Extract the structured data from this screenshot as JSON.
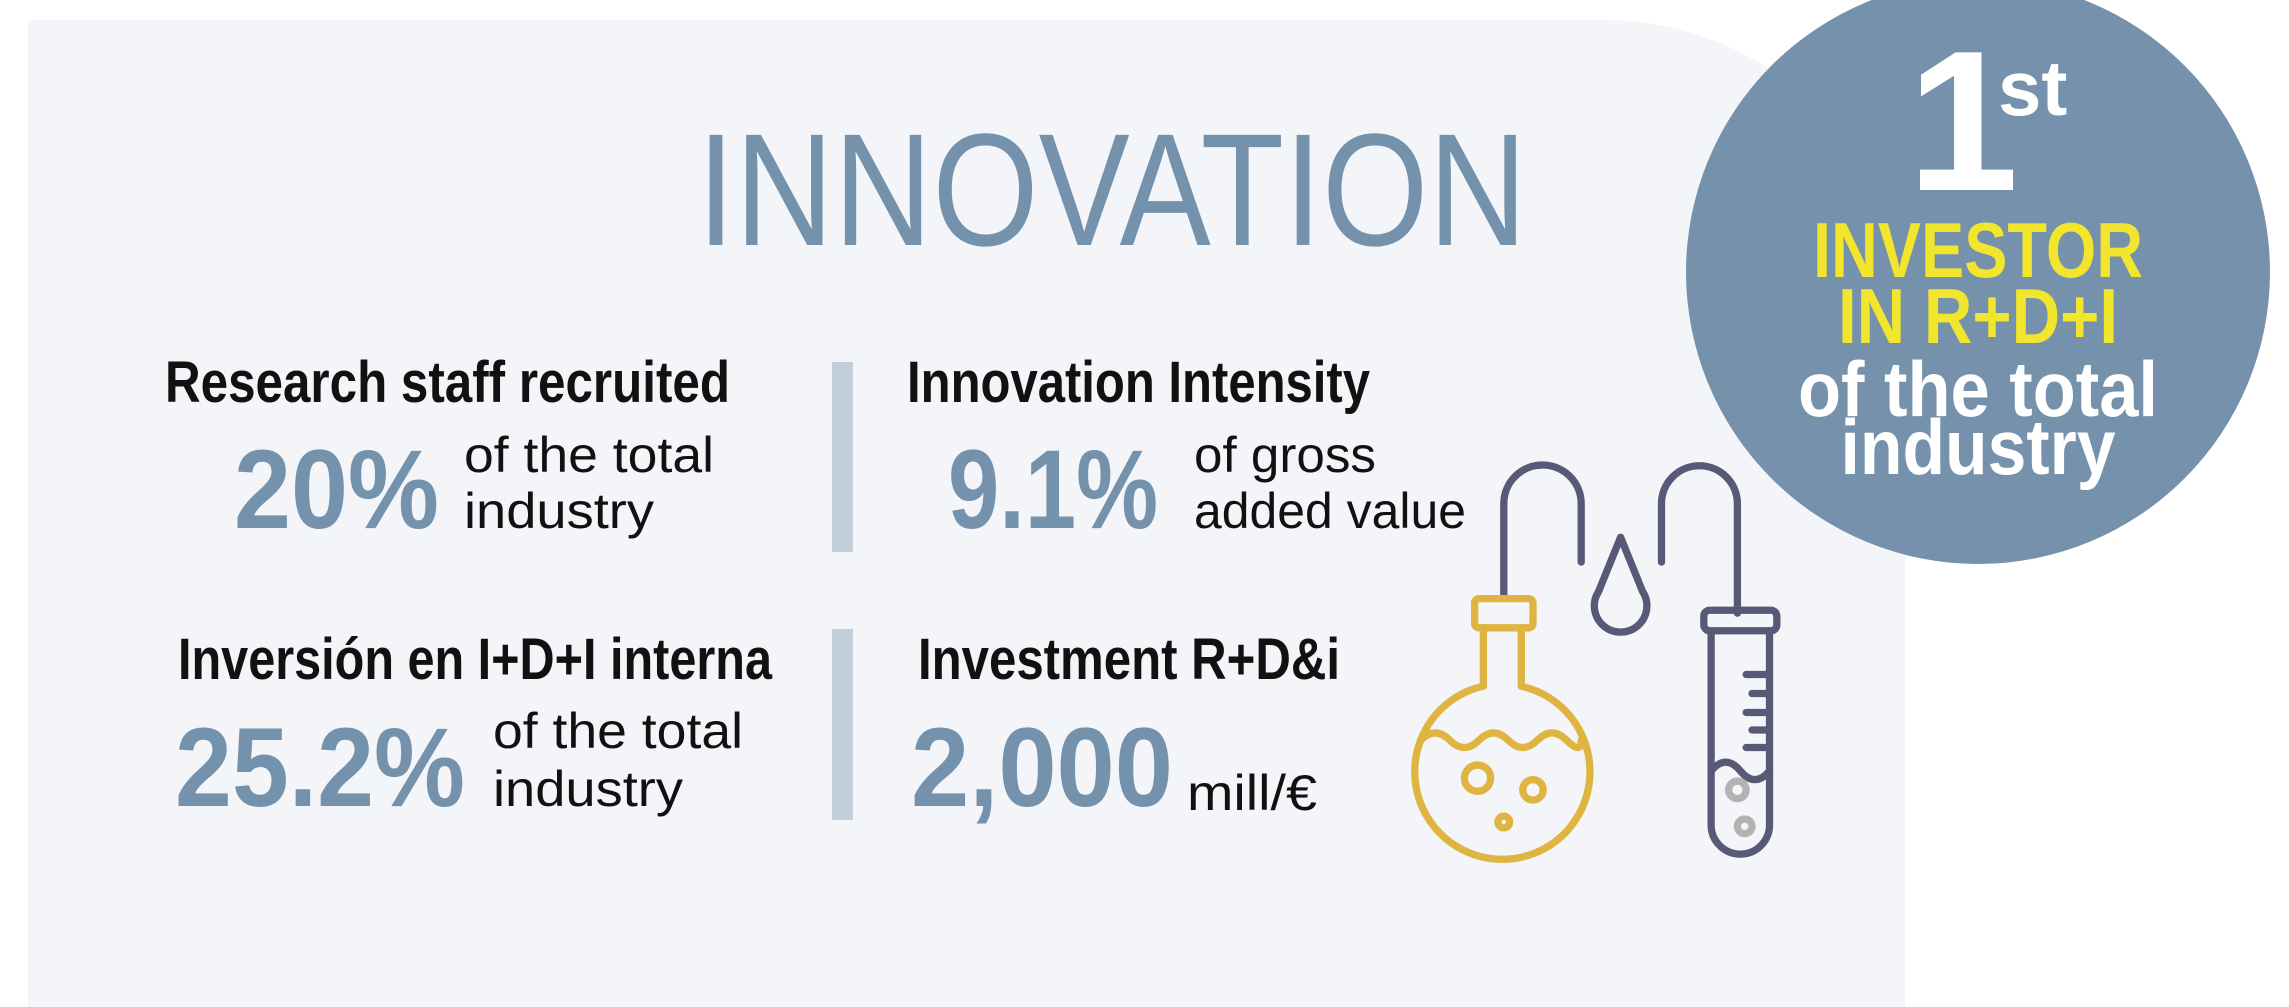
{
  "title": "INNOVATION",
  "stats": [
    {
      "heading": "Research staff recruited",
      "value": "20%",
      "description": [
        "of the total",
        "industry"
      ]
    },
    {
      "heading": "Innovation Intensity",
      "value": "9.1%",
      "description": [
        "of gross",
        "added value"
      ]
    },
    {
      "heading": "Inversión en I+D+I interna",
      "value": "25.2%",
      "description": [
        "of the total",
        "industry"
      ]
    },
    {
      "heading": "Investment R+D&i",
      "value": "2,000",
      "description": [
        "mill/€"
      ]
    }
  ],
  "badge": {
    "rank": "1",
    "suffix": "st",
    "lines": [
      "INVESTOR",
      "IN R+D+I",
      "of the total",
      "industry"
    ]
  }
}
